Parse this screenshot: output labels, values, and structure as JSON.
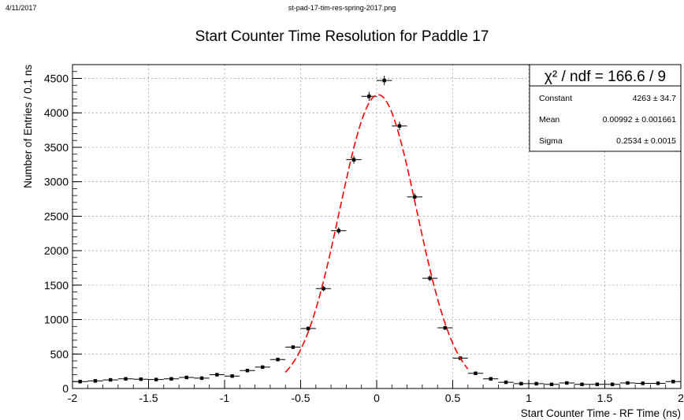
{
  "header": {
    "date": "4/11/2017",
    "filename": "st-pad-17-tim-res-spring-2017.png"
  },
  "chart_data": {
    "type": "scatter",
    "title": "Start Counter Time Resolution for Paddle 17",
    "xlabel": "Start Counter Time - RF Time (ns)",
    "ylabel": "Number of Entries / 0.1 ns",
    "xlim": [
      -2,
      2
    ],
    "ylim": [
      0,
      4700
    ],
    "xticks": [
      "-2",
      "-1.5",
      "-1",
      "-0.5",
      "0",
      "0.5",
      "1",
      "1.5",
      "2"
    ],
    "yticks": [
      "0",
      "500",
      "1000",
      "1500",
      "2000",
      "2500",
      "3000",
      "3500",
      "4000",
      "4500"
    ],
    "grid": true,
    "bin_width": 0.1,
    "series": [
      {
        "x": [
          -1.95,
          -1.85,
          -1.75,
          -1.65,
          -1.55,
          -1.45,
          -1.35,
          -1.25,
          -1.15,
          -1.05,
          -0.95,
          -0.85,
          -0.75,
          -0.65,
          -0.55,
          -0.45,
          -0.35,
          -0.25,
          -0.15,
          -0.05,
          0.05,
          0.15,
          0.25,
          0.35,
          0.45,
          0.55,
          0.65,
          0.75,
          0.85,
          0.95,
          1.05,
          1.15,
          1.25,
          1.35,
          1.45,
          1.55,
          1.65,
          1.75,
          1.85,
          1.95
        ],
        "y": [
          100,
          110,
          125,
          140,
          135,
          130,
          140,
          160,
          150,
          200,
          180,
          260,
          310,
          420,
          600,
          870,
          1450,
          2290,
          3320,
          4240,
          4470,
          3810,
          2780,
          1600,
          880,
          440,
          220,
          140,
          90,
          70,
          70,
          60,
          80,
          60,
          60,
          60,
          80,
          75,
          75,
          100
        ]
      }
    ],
    "fit": {
      "type": "gaussian",
      "constant": 4263,
      "mean": 0.00992,
      "sigma": 0.2534,
      "x_range": [
        -0.6,
        0.6
      ],
      "color": "#ff0000"
    },
    "stats_box": {
      "chi2_label": "χ² / ndf = 166.6 / 9",
      "rows": [
        {
          "name": "Constant",
          "value": "4263 ± 34.7"
        },
        {
          "name": "Mean",
          "value": "0.00992 ± 0.001661"
        },
        {
          "name": "Sigma",
          "value": "0.2534 ± 0.0015"
        }
      ],
      "position": "top-right"
    }
  }
}
